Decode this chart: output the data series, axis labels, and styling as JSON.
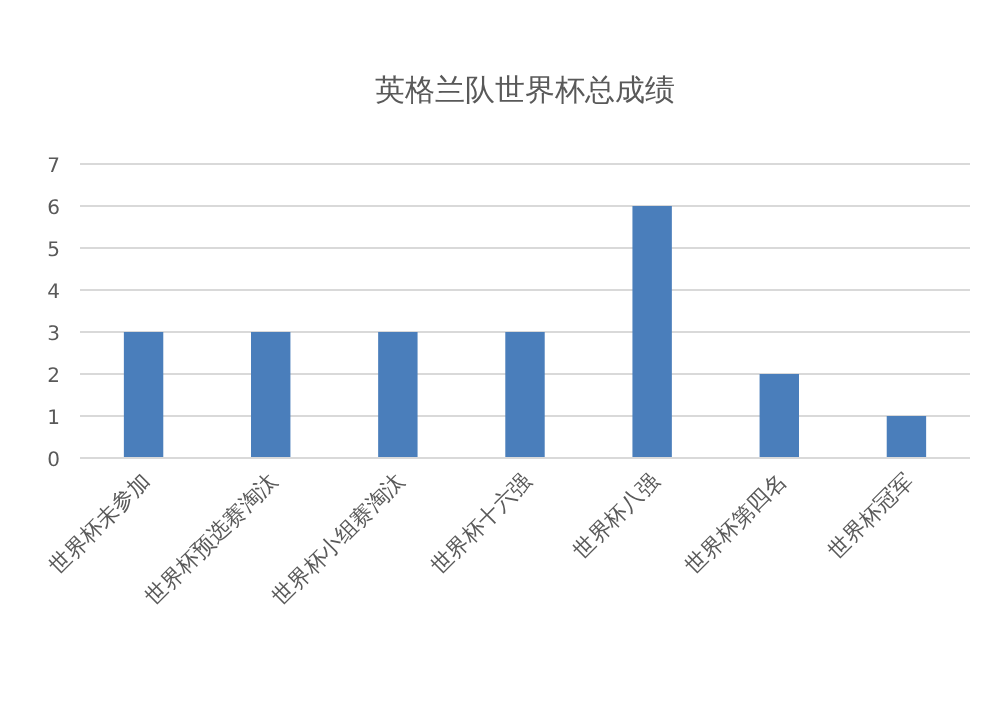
{
  "chart_data": {
    "type": "bar",
    "title": "英格兰队世界杯总成绩",
    "categories": [
      "世界杯未参加",
      "世界杯预选赛淘汰",
      "世界杯小组赛淘汰",
      "世界杯十六强",
      "世界杯八强",
      "世界杯第四名",
      "世界杯冠军"
    ],
    "values": [
      3,
      3,
      3,
      3,
      6,
      2,
      1
    ],
    "color": "#4a7ebb",
    "ylim": [
      0,
      7
    ],
    "yticks": [
      0,
      1,
      2,
      3,
      4,
      5,
      6,
      7
    ],
    "grid": "y"
  }
}
